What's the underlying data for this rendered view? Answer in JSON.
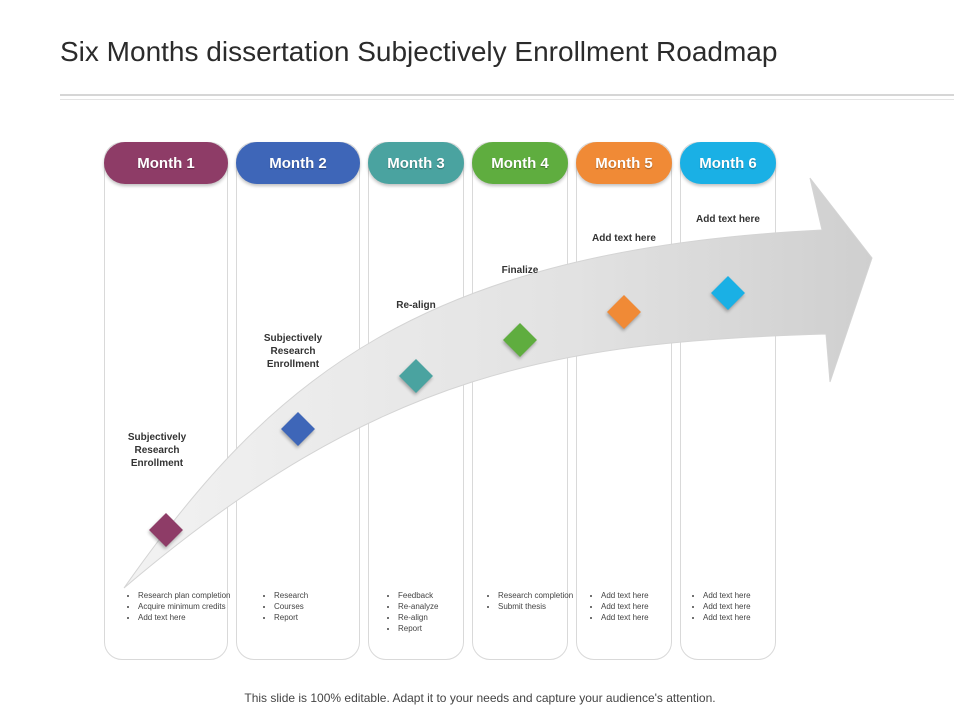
{
  "title": "Six Months dissertation Subjectively Enrollment Roadmap",
  "footer": "This slide is 100% editable. Adapt it to your needs and capture your audience's attention.",
  "months": [
    {
      "label": "Month 1",
      "color": "#8e3c67",
      "milestone": "Subjectively Research Enrollment",
      "bullets": [
        "Research plan completion",
        "Acquire minimum credits",
        "Add text here"
      ]
    },
    {
      "label": "Month 2",
      "color": "#3e66b8",
      "milestone": "Subjectively Research Enrollment",
      "bullets": [
        "Research",
        "Courses",
        "Report"
      ]
    },
    {
      "label": "Month 3",
      "color": "#4aa3a0",
      "milestone": "Re-align",
      "bullets": [
        "Feedback",
        "Re-analyze",
        "Re-align",
        "Report"
      ]
    },
    {
      "label": "Month 4",
      "color": "#5fad3f",
      "milestone": "Finalize",
      "bullets": [
        "Research completion",
        "Submit thesis"
      ]
    },
    {
      "label": "Month 5",
      "color": "#f08a36",
      "milestone": "Add text here",
      "bullets": [
        "Add text here",
        "Add text here",
        "Add text here"
      ]
    },
    {
      "label": "Month 6",
      "color": "#1ab0e5",
      "milestone": "Add text here",
      "bullets": [
        "Add text here",
        "Add text here",
        "Add text here"
      ]
    }
  ]
}
